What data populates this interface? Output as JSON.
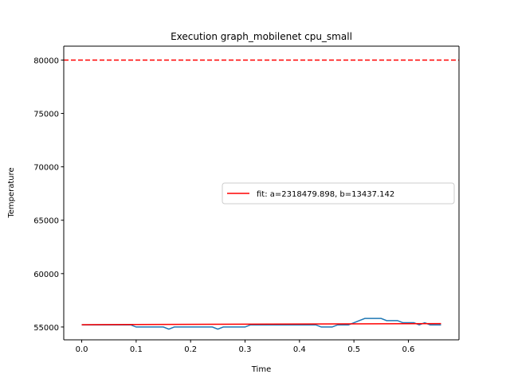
{
  "chart_data": {
    "type": "line",
    "title": "Execution graph_mobilenet cpu_small",
    "xlabel": "Time",
    "ylabel": "Temperature",
    "xlim": [
      -0.033,
      0.693
    ],
    "ylim": [
      53800,
      81300
    ],
    "xticks": [
      0.0,
      0.1,
      0.2,
      0.3,
      0.4,
      0.5,
      0.6
    ],
    "xtick_labels": [
      "0.0",
      "0.1",
      "0.2",
      "0.3",
      "0.4",
      "0.5",
      "0.6"
    ],
    "yticks": [
      55000,
      60000,
      65000,
      70000,
      75000,
      80000
    ],
    "ytick_labels": [
      "55000",
      "60000",
      "65000",
      "70000",
      "75000",
      "80000"
    ],
    "grid": false,
    "legend": {
      "position": "center-right",
      "entries": [
        "fit: a=2318479.898, b=13437.142"
      ]
    },
    "series": [
      {
        "color": "#1f77b4",
        "style": "solid",
        "x": [
          0.0,
          0.01,
          0.02,
          0.03,
          0.04,
          0.05,
          0.06,
          0.07,
          0.08,
          0.09,
          0.1,
          0.11,
          0.12,
          0.13,
          0.14,
          0.15,
          0.16,
          0.17,
          0.18,
          0.19,
          0.2,
          0.21,
          0.22,
          0.23,
          0.24,
          0.25,
          0.26,
          0.27,
          0.28,
          0.29,
          0.3,
          0.31,
          0.32,
          0.33,
          0.34,
          0.35,
          0.36,
          0.37,
          0.38,
          0.39,
          0.4,
          0.41,
          0.42,
          0.43,
          0.44,
          0.45,
          0.46,
          0.47,
          0.48,
          0.49,
          0.5,
          0.51,
          0.52,
          0.53,
          0.54,
          0.55,
          0.56,
          0.57,
          0.58,
          0.59,
          0.6,
          0.61,
          0.62,
          0.63,
          0.64,
          0.65,
          0.66
        ],
        "y": [
          55200,
          55200,
          55200,
          55200,
          55200,
          55200,
          55200,
          55200,
          55200,
          55200,
          55000,
          55000,
          55000,
          55000,
          55000,
          55000,
          54800,
          55000,
          55000,
          55000,
          55000,
          55000,
          55000,
          55000,
          55000,
          54800,
          55000,
          55000,
          55000,
          55000,
          55000,
          55200,
          55200,
          55200,
          55200,
          55200,
          55200,
          55200,
          55200,
          55200,
          55200,
          55200,
          55200,
          55200,
          55000,
          55000,
          55000,
          55200,
          55200,
          55200,
          55400,
          55600,
          55800,
          55800,
          55800,
          55800,
          55600,
          55600,
          55600,
          55400,
          55400,
          55400,
          55200,
          55400,
          55200,
          55200,
          55200
        ]
      },
      {
        "name": "fit: a=2318479.898, b=13437.142",
        "color": "#ff0000",
        "style": "solid",
        "x": [
          0.0,
          0.66
        ],
        "y": [
          55215,
          55318
        ]
      },
      {
        "color": "#ff0000",
        "style": "dashed",
        "x": [
          -0.033,
          0.693
        ],
        "y": [
          80000,
          80000
        ]
      }
    ]
  }
}
